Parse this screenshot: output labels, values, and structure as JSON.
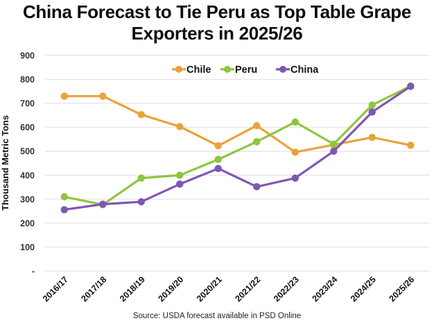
{
  "chart_data": {
    "type": "line",
    "title_lines": [
      "China Forecast to Tie Peru as Top Table Grape",
      "Exporters in 2025/26"
    ],
    "title": "China Forecast to Tie Peru as Top Table Grape Exporters in 2025/26",
    "xlabel": "",
    "ylabel": "Thousand Metric Tons",
    "ylim": [
      0,
      900
    ],
    "yticks": [
      0,
      100,
      200,
      300,
      400,
      500,
      600,
      700,
      800,
      900
    ],
    "ytick_labels": [
      "-",
      "100",
      "200",
      "300",
      "400",
      "500",
      "600",
      "700",
      "800",
      "900"
    ],
    "grid": "horizontal",
    "legend_position": "top-center",
    "categories": [
      "2016/17",
      "2017/18",
      "2018/19",
      "2019/20",
      "2020/21",
      "2021/22",
      "2022/23",
      "2023/24",
      "2024/25",
      "2025/26"
    ],
    "series": [
      {
        "name": "Chile",
        "color": "#E8A33A",
        "values": [
          730,
          730,
          653,
          603,
          523,
          607,
          496,
          527,
          558,
          525
        ]
      },
      {
        "name": "Peru",
        "color": "#8DC63F",
        "values": [
          310,
          277,
          388,
          400,
          466,
          540,
          622,
          530,
          693,
          772
        ]
      },
      {
        "name": "China",
        "color": "#7E57B2",
        "values": [
          256,
          279,
          289,
          363,
          428,
          352,
          388,
          500,
          664,
          771
        ]
      }
    ],
    "source": "Source: USDA forecast available in PSD Online"
  }
}
